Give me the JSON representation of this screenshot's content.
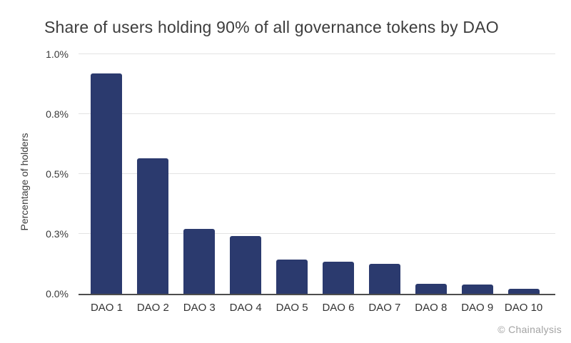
{
  "page": {
    "attribution": "© Chainalysis"
  },
  "chart_data": {
    "type": "bar",
    "title": "Share of users holding 90% of all governance tokens by DAO",
    "categories": [
      "DAO 1",
      "DAO 2",
      "DAO 3",
      "DAO 4",
      "DAO 5",
      "DAO 6",
      "DAO 7",
      "DAO 8",
      "DAO 9",
      "DAO 10"
    ],
    "values": [
      0.92,
      0.565,
      0.27,
      0.242,
      0.143,
      0.133,
      0.125,
      0.042,
      0.038,
      0.021
    ],
    "xlabel": "",
    "ylabel": "Percentage of holders",
    "ylim": [
      0,
      1.0
    ],
    "ytick_values": [
      0,
      0.25,
      0.5,
      0.75,
      1.0
    ],
    "ytick_labels": [
      "0.0%",
      "0.3%",
      "0.5%",
      "0.8%",
      "1.0%"
    ],
    "grid": true,
    "legend": false,
    "bar_color": "#2b3a6e",
    "gridline_color": "#e3e3e3",
    "axis_line_color": "#4d4d4d"
  }
}
